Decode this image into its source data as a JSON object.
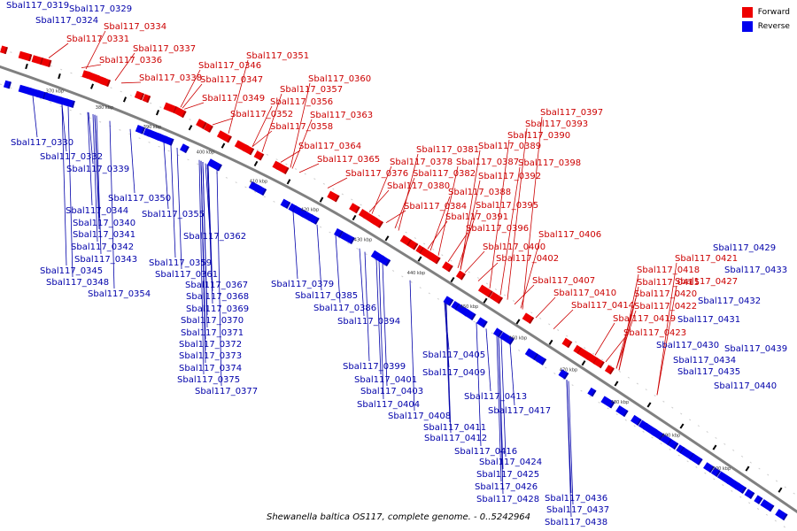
{
  "caption": "Shewanella baltica OS117, complete genome. - 0..5242964",
  "legend": {
    "items": [
      {
        "label": "Forward",
        "color": "#ee0000"
      },
      {
        "label": "Reverse",
        "color": "#0000ee"
      }
    ]
  },
  "colors": {
    "forward": "#ee0000",
    "reverse": "#0000ee",
    "forward_text": "#cc0000",
    "reverse_text": "#0000aa",
    "backbone": "#808080"
  },
  "ticks": [
    "370 kbp",
    "380 kbp",
    "390 kbp",
    "400 kbp",
    "410 kbp",
    "420 kbp",
    "430 kbp",
    "440 kbp",
    "450 kbp",
    "460 kbp",
    "470 kbp",
    "480 kbp",
    "490 kbp",
    "500 kbp"
  ],
  "forward_labels": [
    "Sbal117_0334",
    "Sbal117_0331",
    "Sbal117_0337",
    "Sbal117_0336",
    "Sbal117_0351",
    "Sbal117_0346",
    "Sbal117_0338",
    "Sbal117_0347",
    "Sbal117_0360",
    "Sbal117_0357",
    "Sbal117_0349",
    "Sbal117_0356",
    "Sbal117_0352",
    "Sbal117_0363",
    "Sbal117_0358",
    "Sbal117_0397",
    "Sbal117_0393",
    "Sbal117_0390",
    "Sbal117_0389",
    "Sbal117_0364",
    "Sbal117_0381",
    "Sbal117_0365",
    "Sbal117_0378",
    "Sbal117_0387",
    "Sbal117_0398",
    "Sbal117_0376",
    "Sbal117_0382",
    "Sbal117_0392",
    "Sbal117_0380",
    "Sbal117_0388",
    "Sbal117_0384",
    "Sbal117_0395",
    "Sbal117_0391",
    "Sbal117_0396",
    "Sbal117_0406",
    "Sbal117_0400",
    "Sbal117_0402",
    "Sbal117_0421",
    "Sbal117_0418",
    "Sbal117_0407",
    "Sbal117_0415",
    "Sbal117_0427",
    "Sbal117_0410",
    "Sbal117_0420",
    "Sbal117_0414",
    "Sbal117_0422",
    "Sbal117_0419",
    "Sbal117_0423"
  ],
  "reverse_labels": [
    "Sbal117_0319",
    "Sbal117_0329",
    "Sbal117_0324",
    "Sbal117_0330",
    "Sbal117_0332",
    "Sbal117_0339",
    "Sbal117_0350",
    "Sbal117_0344",
    "Sbal117_0355",
    "Sbal117_0340",
    "Sbal117_0341",
    "Sbal117_0362",
    "Sbal117_0342",
    "Sbal117_0343",
    "Sbal117_0359",
    "Sbal117_0345",
    "Sbal117_0361",
    "Sbal117_0348",
    "Sbal117_0367",
    "Sbal117_0379",
    "Sbal117_0354",
    "Sbal117_0368",
    "Sbal117_0385",
    "Sbal117_0369",
    "Sbal117_0386",
    "Sbal117_0370",
    "Sbal117_0394",
    "Sbal117_0371",
    "Sbal117_0372",
    "Sbal117_0405",
    "Sbal117_0373",
    "Sbal117_0399",
    "Sbal117_0374",
    "Sbal117_0409",
    "Sbal117_0401",
    "Sbal117_0375",
    "Sbal117_0403",
    "Sbal117_0377",
    "Sbal117_0413",
    "Sbal117_0404",
    "Sbal117_0417",
    "Sbal117_0408",
    "Sbal117_0411",
    "Sbal117_0412",
    "Sbal117_0416",
    "Sbal117_0424",
    "Sbal117_0425",
    "Sbal117_0426",
    "Sbal117_0428",
    "Sbal117_0436",
    "Sbal117_0437",
    "Sbal117_0438",
    "Sbal117_0429",
    "Sbal117_0433",
    "Sbal117_0432",
    "Sbal117_0431",
    "Sbal117_0430",
    "Sbal117_0439",
    "Sbal117_0434",
    "Sbal117_0435",
    "Sbal117_0440"
  ]
}
